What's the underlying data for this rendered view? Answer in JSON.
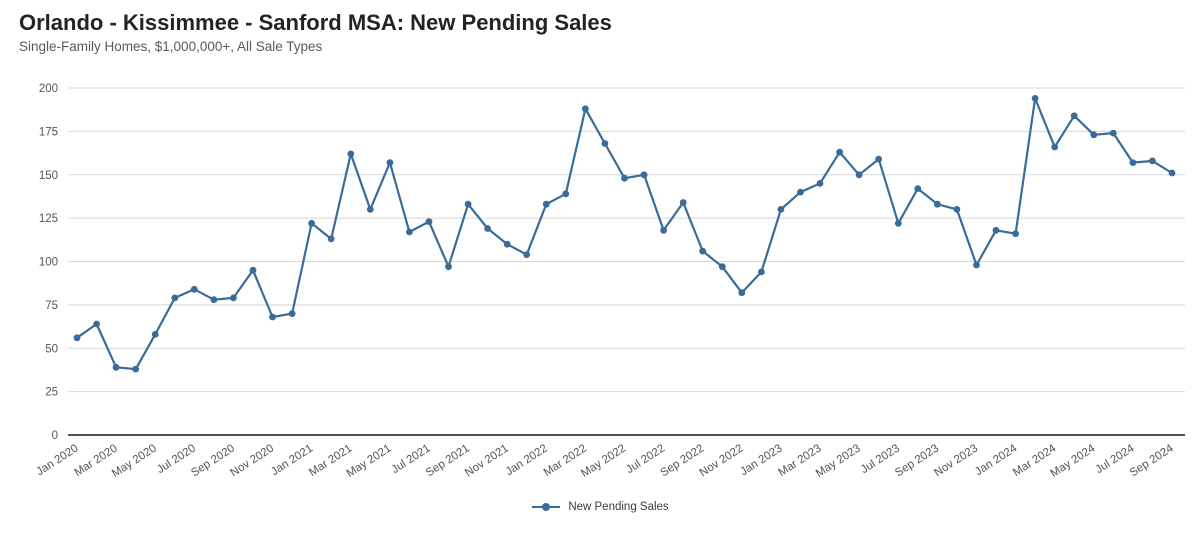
{
  "header": {
    "title": "Orlando - Kissimmee - Sanford MSA: New Pending Sales",
    "subtitle": "Single-Family Homes, $1,000,000+, All Sale Types"
  },
  "legend": {
    "label": "New Pending Sales"
  },
  "colors": {
    "line": "#3A6B99",
    "grid": "#D8D8D8",
    "axis": "#1A1A1A",
    "tick_text": "#555555",
    "title_text": "#232323",
    "subtitle_text": "#5A5A5A"
  },
  "chart_data": {
    "type": "line",
    "title": "Orlando - Kissimmee - Sanford MSA: New Pending Sales",
    "subtitle": "Single-Family Homes, $1,000,000+, All Sale Types",
    "xlabel": "",
    "ylabel": "",
    "ylim": [
      0,
      200
    ],
    "y_ticks": [
      0,
      25,
      50,
      75,
      100,
      125,
      150,
      175,
      200
    ],
    "grid": "horizontal",
    "legend_position": "bottom",
    "x_tick_every": 2,
    "x": [
      "Jan 2020",
      "Feb 2020",
      "Mar 2020",
      "Apr 2020",
      "May 2020",
      "Jun 2020",
      "Jul 2020",
      "Aug 2020",
      "Sep 2020",
      "Oct 2020",
      "Nov 2020",
      "Dec 2020",
      "Jan 2021",
      "Feb 2021",
      "Mar 2021",
      "Apr 2021",
      "May 2021",
      "Jun 2021",
      "Jul 2021",
      "Aug 2021",
      "Sep 2021",
      "Oct 2021",
      "Nov 2021",
      "Dec 2021",
      "Jan 2022",
      "Feb 2022",
      "Mar 2022",
      "Apr 2022",
      "May 2022",
      "Jun 2022",
      "Jul 2022",
      "Aug 2022",
      "Sep 2022",
      "Oct 2022",
      "Nov 2022",
      "Dec 2022",
      "Jan 2023",
      "Feb 2023",
      "Mar 2023",
      "Apr 2023",
      "May 2023",
      "Jun 2023",
      "Jul 2023",
      "Aug 2023",
      "Sep 2023",
      "Oct 2023",
      "Nov 2023",
      "Dec 2023",
      "Jan 2024",
      "Feb 2024",
      "Mar 2024",
      "Apr 2024",
      "May 2024",
      "Jun 2024",
      "Jul 2024",
      "Aug 2024",
      "Sep 2024"
    ],
    "series": [
      {
        "name": "New Pending Sales",
        "values": [
          56,
          64,
          39,
          38,
          58,
          79,
          84,
          78,
          79,
          95,
          68,
          70,
          122,
          113,
          162,
          130,
          157,
          117,
          123,
          97,
          133,
          119,
          110,
          104,
          133,
          139,
          188,
          168,
          148,
          150,
          118,
          134,
          106,
          97,
          82,
          94,
          130,
          140,
          145,
          163,
          150,
          159,
          122,
          142,
          133,
          130,
          98,
          118,
          116,
          194,
          166,
          184,
          173,
          174,
          157,
          158,
          151
        ]
      }
    ]
  }
}
